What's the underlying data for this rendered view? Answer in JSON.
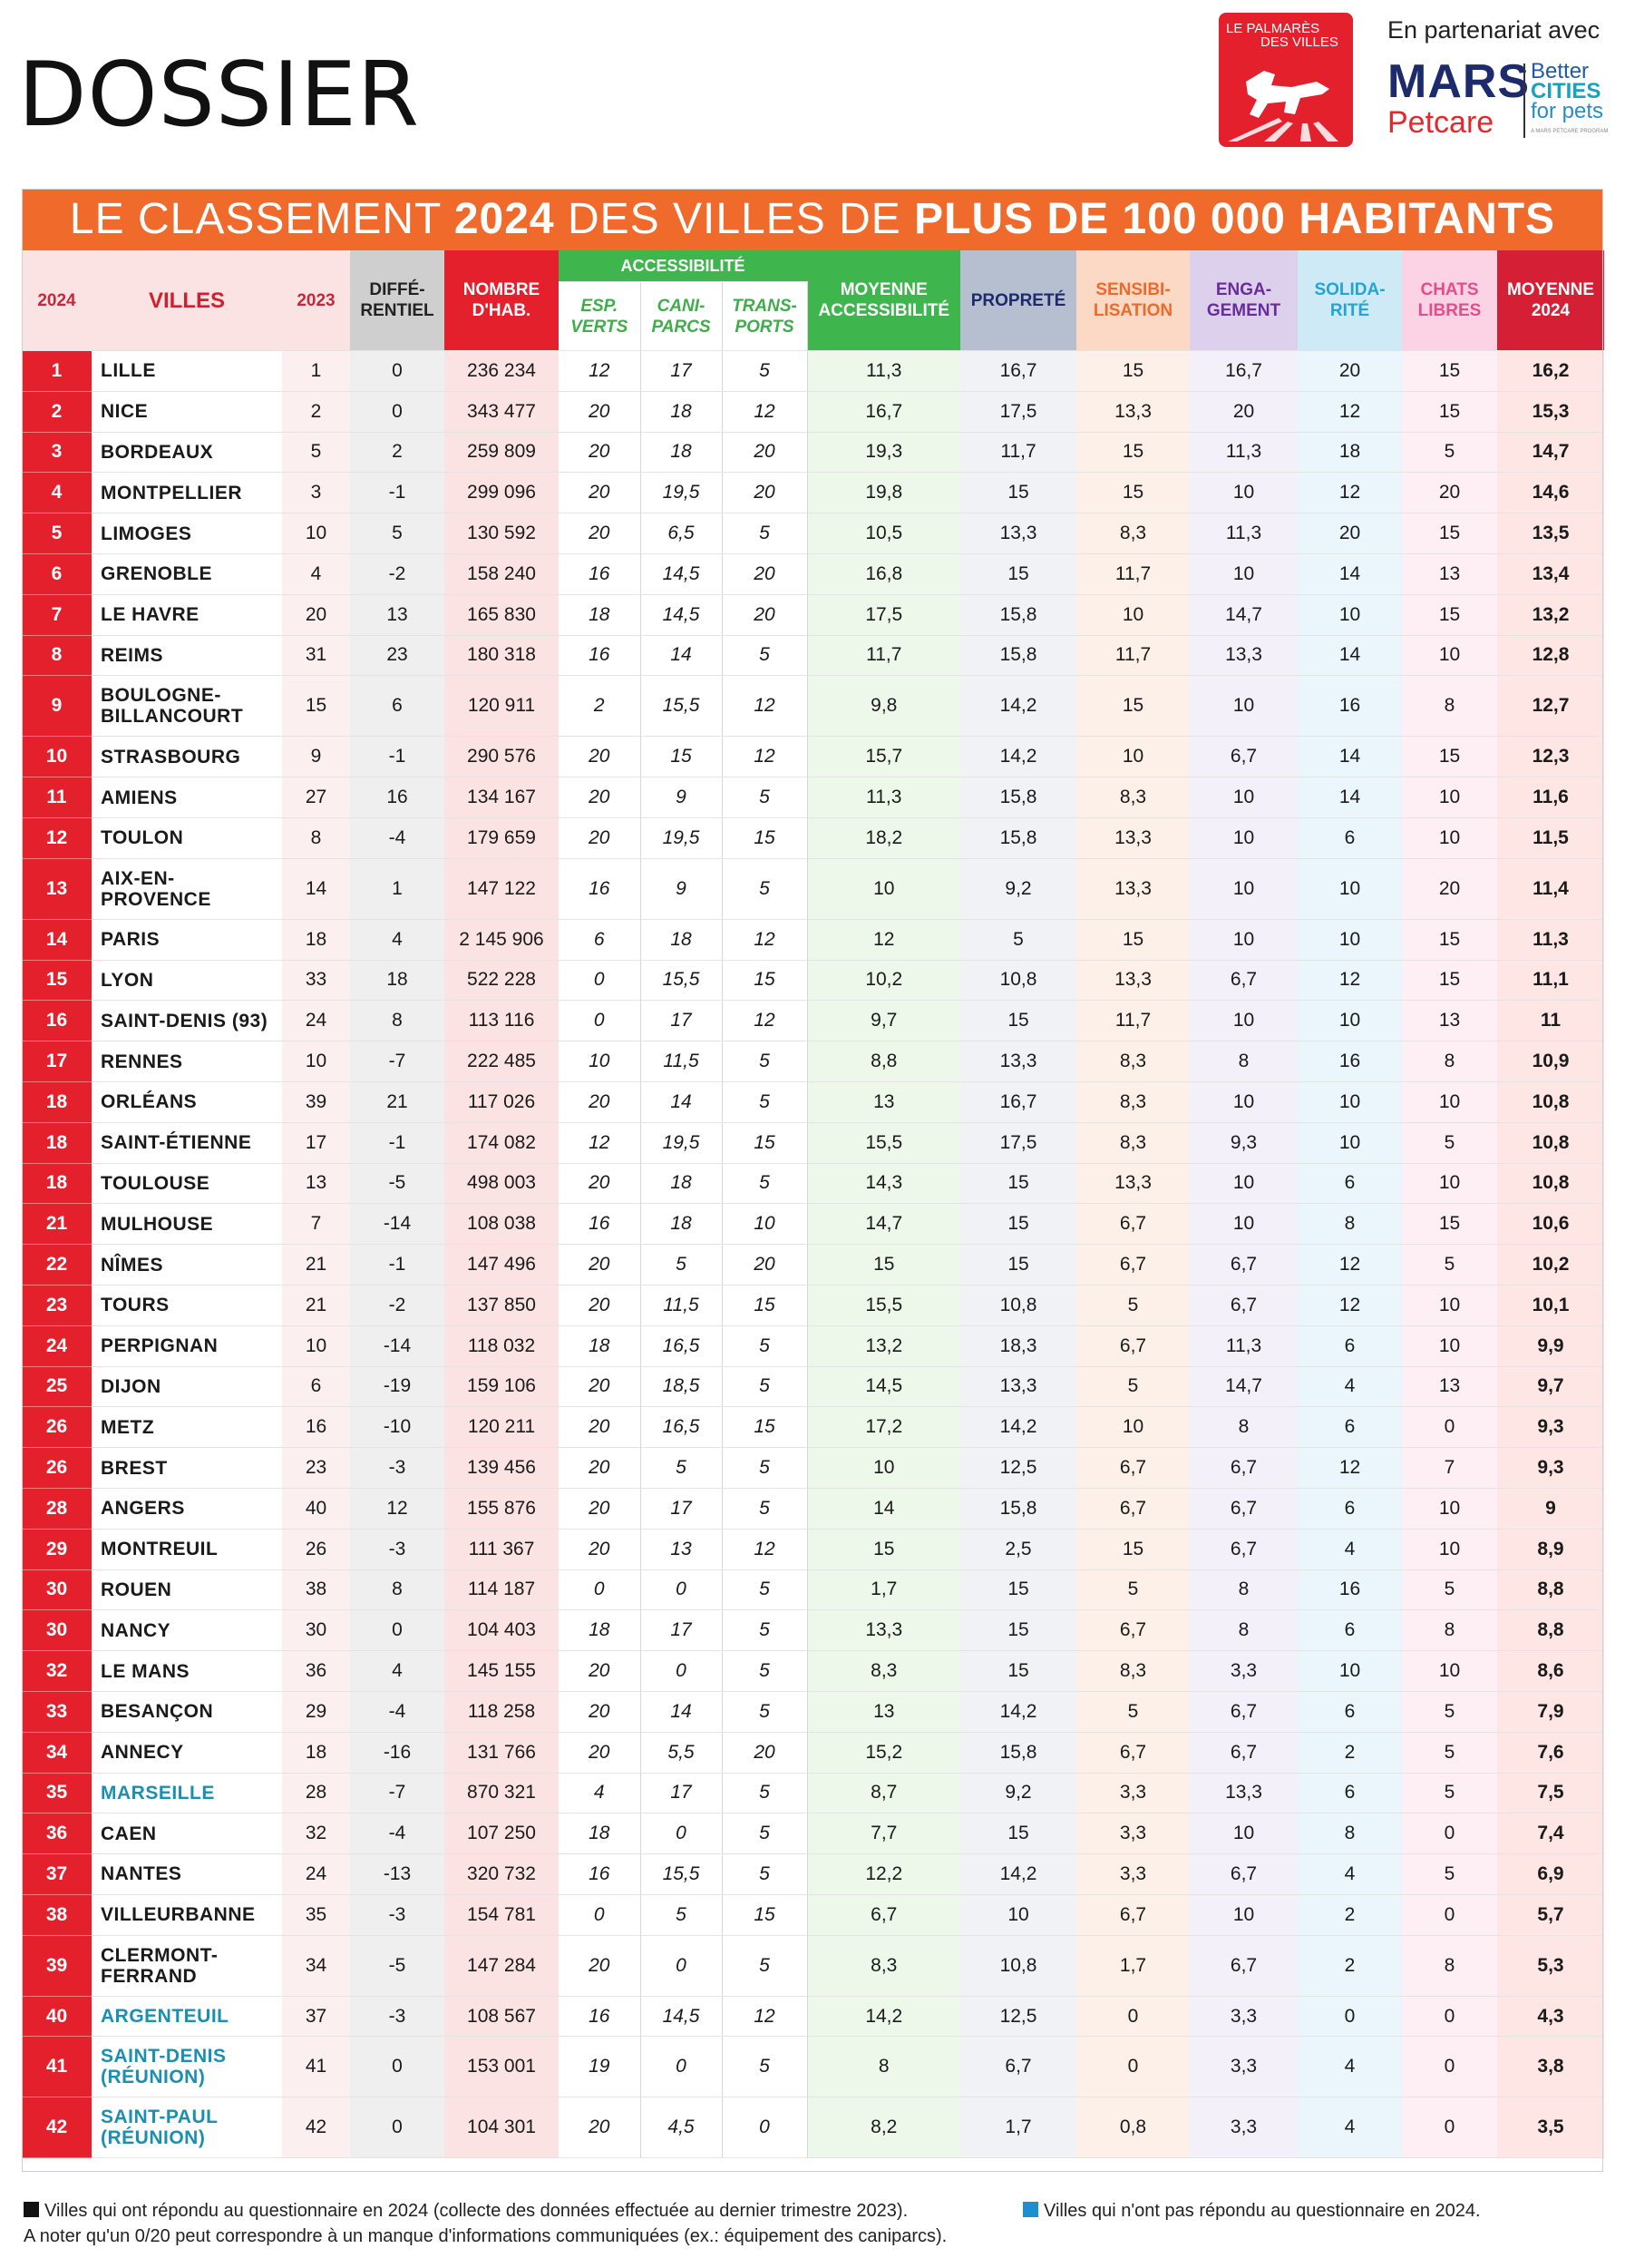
{
  "header": {
    "section_title": "DOSSIER",
    "logo_text_1": "LE PALMARÈS",
    "logo_text_2": "DES VILLES",
    "partner_text": "En partenariat avec",
    "partner_brand": "MARS",
    "partner_sub": "Petcare",
    "partner_program_1": "Better",
    "partner_program_2": "CITIES",
    "partner_program_3": "for pets",
    "partner_tagline": "A MARS PETCARE PROGRAM"
  },
  "banner": {
    "part1": "LE CLASSEMENT ",
    "year": "2024",
    "part2": " DES VILLES DE ",
    "part3": "PLUS DE 100 000 HABITANTS"
  },
  "columns": {
    "rank": "2024",
    "ville": "VILLES",
    "y2023": "2023",
    "diff": "DIFFÉ-\nRENTIEL",
    "hab": "NOMBRE\nD'HAB.",
    "accessibilite": "ACCESSIBILITÉ",
    "esp": "ESP.\nVERTS",
    "cani": "CANI-\nPARCS",
    "trans": "TRANS-\nPORTS",
    "moyacc": "MOYENNE\nACCESSIBILITÉ",
    "prop": "PROPRETÉ",
    "sens": "SENSIBI-\nLISATION",
    "eng": "ENGA-\nGEMENT",
    "sol": "SOLIDA-\nRITÉ",
    "chats": "CHATS\nLIBRES",
    "moy": "MOYENNE\n2024"
  },
  "rows": [
    {
      "rank": "1",
      "ville": "LILLE",
      "y2023": "1",
      "diff": "0",
      "hab": "236 234",
      "esp": "12",
      "cani": "17",
      "trans": "5",
      "moyacc": "11,3",
      "prop": "16,7",
      "sens": "15",
      "eng": "16,7",
      "sol": "20",
      "chats": "15",
      "moy": "16,2",
      "responded": true
    },
    {
      "rank": "2",
      "ville": "NICE",
      "y2023": "2",
      "diff": "0",
      "hab": "343 477",
      "esp": "20",
      "cani": "18",
      "trans": "12",
      "moyacc": "16,7",
      "prop": "17,5",
      "sens": "13,3",
      "eng": "20",
      "sol": "12",
      "chats": "15",
      "moy": "15,3",
      "responded": true
    },
    {
      "rank": "3",
      "ville": "BORDEAUX",
      "y2023": "5",
      "diff": "2",
      "hab": "259 809",
      "esp": "20",
      "cani": "18",
      "trans": "20",
      "moyacc": "19,3",
      "prop": "11,7",
      "sens": "15",
      "eng": "11,3",
      "sol": "18",
      "chats": "5",
      "moy": "14,7",
      "responded": true
    },
    {
      "rank": "4",
      "ville": "MONTPELLIER",
      "y2023": "3",
      "diff": "-1",
      "hab": "299 096",
      "esp": "20",
      "cani": "19,5",
      "trans": "20",
      "moyacc": "19,8",
      "prop": "15",
      "sens": "15",
      "eng": "10",
      "sol": "12",
      "chats": "20",
      "moy": "14,6",
      "responded": true
    },
    {
      "rank": "5",
      "ville": "LIMOGES",
      "y2023": "10",
      "diff": "5",
      "hab": "130 592",
      "esp": "20",
      "cani": "6,5",
      "trans": "5",
      "moyacc": "10,5",
      "prop": "13,3",
      "sens": "8,3",
      "eng": "11,3",
      "sol": "20",
      "chats": "15",
      "moy": "13,5",
      "responded": true
    },
    {
      "rank": "6",
      "ville": "GRENOBLE",
      "y2023": "4",
      "diff": "-2",
      "hab": "158 240",
      "esp": "16",
      "cani": "14,5",
      "trans": "20",
      "moyacc": "16,8",
      "prop": "15",
      "sens": "11,7",
      "eng": "10",
      "sol": "14",
      "chats": "13",
      "moy": "13,4",
      "responded": true
    },
    {
      "rank": "7",
      "ville": "LE HAVRE",
      "y2023": "20",
      "diff": "13",
      "hab": "165 830",
      "esp": "18",
      "cani": "14,5",
      "trans": "20",
      "moyacc": "17,5",
      "prop": "15,8",
      "sens": "10",
      "eng": "14,7",
      "sol": "10",
      "chats": "15",
      "moy": "13,2",
      "responded": true
    },
    {
      "rank": "8",
      "ville": "REIMS",
      "y2023": "31",
      "diff": "23",
      "hab": "180 318",
      "esp": "16",
      "cani": "14",
      "trans": "5",
      "moyacc": "11,7",
      "prop": "15,8",
      "sens": "11,7",
      "eng": "13,3",
      "sol": "14",
      "chats": "10",
      "moy": "12,8",
      "responded": true
    },
    {
      "rank": "9",
      "ville": "BOULOGNE-\nBILLANCOURT",
      "y2023": "15",
      "diff": "6",
      "hab": "120 911",
      "esp": "2",
      "cani": "15,5",
      "trans": "12",
      "moyacc": "9,8",
      "prop": "14,2",
      "sens": "15",
      "eng": "10",
      "sol": "16",
      "chats": "8",
      "moy": "12,7",
      "responded": true,
      "tall": true
    },
    {
      "rank": "10",
      "ville": "STRASBOURG",
      "y2023": "9",
      "diff": "-1",
      "hab": "290 576",
      "esp": "20",
      "cani": "15",
      "trans": "12",
      "moyacc": "15,7",
      "prop": "14,2",
      "sens": "10",
      "eng": "6,7",
      "sol": "14",
      "chats": "15",
      "moy": "12,3",
      "responded": true
    },
    {
      "rank": "11",
      "ville": "AMIENS",
      "y2023": "27",
      "diff": "16",
      "hab": "134 167",
      "esp": "20",
      "cani": "9",
      "trans": "5",
      "moyacc": "11,3",
      "prop": "15,8",
      "sens": "8,3",
      "eng": "10",
      "sol": "14",
      "chats": "10",
      "moy": "11,6",
      "responded": true
    },
    {
      "rank": "12",
      "ville": "TOULON",
      "y2023": "8",
      "diff": "-4",
      "hab": "179 659",
      "esp": "20",
      "cani": "19,5",
      "trans": "15",
      "moyacc": "18,2",
      "prop": "15,8",
      "sens": "13,3",
      "eng": "10",
      "sol": "6",
      "chats": "10",
      "moy": "11,5",
      "responded": true
    },
    {
      "rank": "13",
      "ville": "AIX-EN-\nPROVENCE",
      "y2023": "14",
      "diff": "1",
      "hab": "147 122",
      "esp": "16",
      "cani": "9",
      "trans": "5",
      "moyacc": "10",
      "prop": "9,2",
      "sens": "13,3",
      "eng": "10",
      "sol": "10",
      "chats": "20",
      "moy": "11,4",
      "responded": true,
      "tall": true
    },
    {
      "rank": "14",
      "ville": "PARIS",
      "y2023": "18",
      "diff": "4",
      "hab": "2 145 906",
      "esp": "6",
      "cani": "18",
      "trans": "12",
      "moyacc": "12",
      "prop": "5",
      "sens": "15",
      "eng": "10",
      "sol": "10",
      "chats": "15",
      "moy": "11,3",
      "responded": true
    },
    {
      "rank": "15",
      "ville": "LYON",
      "y2023": "33",
      "diff": "18",
      "hab": "522 228",
      "esp": "0",
      "cani": "15,5",
      "trans": "15",
      "moyacc": "10,2",
      "prop": "10,8",
      "sens": "13,3",
      "eng": "6,7",
      "sol": "12",
      "chats": "15",
      "moy": "11,1",
      "responded": true
    },
    {
      "rank": "16",
      "ville": "SAINT-DENIS (93)",
      "y2023": "24",
      "diff": "8",
      "hab": "113 116",
      "esp": "0",
      "cani": "17",
      "trans": "12",
      "moyacc": "9,7",
      "prop": "15",
      "sens": "11,7",
      "eng": "10",
      "sol": "10",
      "chats": "13",
      "moy": "11",
      "responded": true
    },
    {
      "rank": "17",
      "ville": "RENNES",
      "y2023": "10",
      "diff": "-7",
      "hab": "222 485",
      "esp": "10",
      "cani": "11,5",
      "trans": "5",
      "moyacc": "8,8",
      "prop": "13,3",
      "sens": "8,3",
      "eng": "8",
      "sol": "16",
      "chats": "8",
      "moy": "10,9",
      "responded": true
    },
    {
      "rank": "18",
      "ville": "ORLÉANS",
      "y2023": "39",
      "diff": "21",
      "hab": "117 026",
      "esp": "20",
      "cani": "14",
      "trans": "5",
      "moyacc": "13",
      "prop": "16,7",
      "sens": "8,3",
      "eng": "10",
      "sol": "10",
      "chats": "10",
      "moy": "10,8",
      "responded": true
    },
    {
      "rank": "18",
      "ville": "SAINT-ÉTIENNE",
      "y2023": "17",
      "diff": "-1",
      "hab": "174 082",
      "esp": "12",
      "cani": "19,5",
      "trans": "15",
      "moyacc": "15,5",
      "prop": "17,5",
      "sens": "8,3",
      "eng": "9,3",
      "sol": "10",
      "chats": "5",
      "moy": "10,8",
      "responded": true
    },
    {
      "rank": "18",
      "ville": "TOULOUSE",
      "y2023": "13",
      "diff": "-5",
      "hab": "498 003",
      "esp": "20",
      "cani": "18",
      "trans": "5",
      "moyacc": "14,3",
      "prop": "15",
      "sens": "13,3",
      "eng": "10",
      "sol": "6",
      "chats": "10",
      "moy": "10,8",
      "responded": true
    },
    {
      "rank": "21",
      "ville": "MULHOUSE",
      "y2023": "7",
      "diff": "-14",
      "hab": "108 038",
      "esp": "16",
      "cani": "18",
      "trans": "10",
      "moyacc": "14,7",
      "prop": "15",
      "sens": "6,7",
      "eng": "10",
      "sol": "8",
      "chats": "15",
      "moy": "10,6",
      "responded": true
    },
    {
      "rank": "22",
      "ville": "NÎMES",
      "y2023": "21",
      "diff": "-1",
      "hab": "147 496",
      "esp": "20",
      "cani": "5",
      "trans": "20",
      "moyacc": "15",
      "prop": "15",
      "sens": "6,7",
      "eng": "6,7",
      "sol": "12",
      "chats": "5",
      "moy": "10,2",
      "responded": true
    },
    {
      "rank": "23",
      "ville": "TOURS",
      "y2023": "21",
      "diff": "-2",
      "hab": "137 850",
      "esp": "20",
      "cani": "11,5",
      "trans": "15",
      "moyacc": "15,5",
      "prop": "10,8",
      "sens": "5",
      "eng": "6,7",
      "sol": "12",
      "chats": "10",
      "moy": "10,1",
      "responded": true
    },
    {
      "rank": "24",
      "ville": "PERPIGNAN",
      "y2023": "10",
      "diff": "-14",
      "hab": "118 032",
      "esp": "18",
      "cani": "16,5",
      "trans": "5",
      "moyacc": "13,2",
      "prop": "18,3",
      "sens": "6,7",
      "eng": "11,3",
      "sol": "6",
      "chats": "10",
      "moy": "9,9",
      "responded": true
    },
    {
      "rank": "25",
      "ville": "DIJON",
      "y2023": "6",
      "diff": "-19",
      "hab": "159 106",
      "esp": "20",
      "cani": "18,5",
      "trans": "5",
      "moyacc": "14,5",
      "prop": "13,3",
      "sens": "5",
      "eng": "14,7",
      "sol": "4",
      "chats": "13",
      "moy": "9,7",
      "responded": true
    },
    {
      "rank": "26",
      "ville": "METZ",
      "y2023": "16",
      "diff": "-10",
      "hab": "120 211",
      "esp": "20",
      "cani": "16,5",
      "trans": "15",
      "moyacc": "17,2",
      "prop": "14,2",
      "sens": "10",
      "eng": "8",
      "sol": "6",
      "chats": "0",
      "moy": "9,3",
      "responded": true
    },
    {
      "rank": "26",
      "ville": "BREST",
      "y2023": "23",
      "diff": "-3",
      "hab": "139 456",
      "esp": "20",
      "cani": "5",
      "trans": "5",
      "moyacc": "10",
      "prop": "12,5",
      "sens": "6,7",
      "eng": "6,7",
      "sol": "12",
      "chats": "7",
      "moy": "9,3",
      "responded": true
    },
    {
      "rank": "28",
      "ville": "ANGERS",
      "y2023": "40",
      "diff": "12",
      "hab": "155 876",
      "esp": "20",
      "cani": "17",
      "trans": "5",
      "moyacc": "14",
      "prop": "15,8",
      "sens": "6,7",
      "eng": "6,7",
      "sol": "6",
      "chats": "10",
      "moy": "9",
      "responded": true
    },
    {
      "rank": "29",
      "ville": "MONTREUIL",
      "y2023": "26",
      "diff": "-3",
      "hab": "111 367",
      "esp": "20",
      "cani": "13",
      "trans": "12",
      "moyacc": "15",
      "prop": "2,5",
      "sens": "15",
      "eng": "6,7",
      "sol": "4",
      "chats": "10",
      "moy": "8,9",
      "responded": true
    },
    {
      "rank": "30",
      "ville": "ROUEN",
      "y2023": "38",
      "diff": "8",
      "hab": "114 187",
      "esp": "0",
      "cani": "0",
      "trans": "5",
      "moyacc": "1,7",
      "prop": "15",
      "sens": "5",
      "eng": "8",
      "sol": "16",
      "chats": "5",
      "moy": "8,8",
      "responded": true
    },
    {
      "rank": "30",
      "ville": "NANCY",
      "y2023": "30",
      "diff": "0",
      "hab": "104 403",
      "esp": "18",
      "cani": "17",
      "trans": "5",
      "moyacc": "13,3",
      "prop": "15",
      "sens": "6,7",
      "eng": "8",
      "sol": "6",
      "chats": "8",
      "moy": "8,8",
      "responded": true
    },
    {
      "rank": "32",
      "ville": "LE MANS",
      "y2023": "36",
      "diff": "4",
      "hab": "145 155",
      "esp": "20",
      "cani": "0",
      "trans": "5",
      "moyacc": "8,3",
      "prop": "15",
      "sens": "8,3",
      "eng": "3,3",
      "sol": "10",
      "chats": "10",
      "moy": "8,6",
      "responded": true
    },
    {
      "rank": "33",
      "ville": "BESANÇON",
      "y2023": "29",
      "diff": "-4",
      "hab": "118 258",
      "esp": "20",
      "cani": "14",
      "trans": "5",
      "moyacc": "13",
      "prop": "14,2",
      "sens": "5",
      "eng": "6,7",
      "sol": "6",
      "chats": "5",
      "moy": "7,9",
      "responded": true
    },
    {
      "rank": "34",
      "ville": "ANNECY",
      "y2023": "18",
      "diff": "-16",
      "hab": "131 766",
      "esp": "20",
      "cani": "5,5",
      "trans": "20",
      "moyacc": "15,2",
      "prop": "15,8",
      "sens": "6,7",
      "eng": "6,7",
      "sol": "2",
      "chats": "5",
      "moy": "7,6",
      "responded": true
    },
    {
      "rank": "35",
      "ville": "MARSEILLE",
      "y2023": "28",
      "diff": "-7",
      "hab": "870 321",
      "esp": "4",
      "cani": "17",
      "trans": "5",
      "moyacc": "8,7",
      "prop": "9,2",
      "sens": "3,3",
      "eng": "13,3",
      "sol": "6",
      "chats": "5",
      "moy": "7,5",
      "responded": false
    },
    {
      "rank": "36",
      "ville": "CAEN",
      "y2023": "32",
      "diff": "-4",
      "hab": "107 250",
      "esp": "18",
      "cani": "0",
      "trans": "5",
      "moyacc": "7,7",
      "prop": "15",
      "sens": "3,3",
      "eng": "10",
      "sol": "8",
      "chats": "0",
      "moy": "7,4",
      "responded": true
    },
    {
      "rank": "37",
      "ville": "NANTES",
      "y2023": "24",
      "diff": "-13",
      "hab": "320 732",
      "esp": "16",
      "cani": "15,5",
      "trans": "5",
      "moyacc": "12,2",
      "prop": "14,2",
      "sens": "3,3",
      "eng": "6,7",
      "sol": "4",
      "chats": "5",
      "moy": "6,9",
      "responded": true
    },
    {
      "rank": "38",
      "ville": "VILLEURBANNE",
      "y2023": "35",
      "diff": "-3",
      "hab": "154 781",
      "esp": "0",
      "cani": "5",
      "trans": "15",
      "moyacc": "6,7",
      "prop": "10",
      "sens": "6,7",
      "eng": "10",
      "sol": "2",
      "chats": "0",
      "moy": "5,7",
      "responded": true
    },
    {
      "rank": "39",
      "ville": "CLERMONT-\nFERRAND",
      "y2023": "34",
      "diff": "-5",
      "hab": "147 284",
      "esp": "20",
      "cani": "0",
      "trans": "5",
      "moyacc": "8,3",
      "prop": "10,8",
      "sens": "1,7",
      "eng": "6,7",
      "sol": "2",
      "chats": "8",
      "moy": "5,3",
      "responded": true,
      "tall": true
    },
    {
      "rank": "40",
      "ville": "ARGENTEUIL",
      "y2023": "37",
      "diff": "-3",
      "hab": "108 567",
      "esp": "16",
      "cani": "14,5",
      "trans": "12",
      "moyacc": "14,2",
      "prop": "12,5",
      "sens": "0",
      "eng": "3,3",
      "sol": "0",
      "chats": "0",
      "moy": "4,3",
      "responded": false
    },
    {
      "rank": "41",
      "ville": "SAINT-DENIS\n(RÉUNION)",
      "y2023": "41",
      "diff": "0",
      "hab": "153 001",
      "esp": "19",
      "cani": "0",
      "trans": "5",
      "moyacc": "8",
      "prop": "6,7",
      "sens": "0",
      "eng": "3,3",
      "sol": "4",
      "chats": "0",
      "moy": "3,8",
      "responded": false,
      "tall": true
    },
    {
      "rank": "42",
      "ville": "SAINT-PAUL\n(RÉUNION)",
      "y2023": "42",
      "diff": "0",
      "hab": "104 301",
      "esp": "20",
      "cani": "4,5",
      "trans": "0",
      "moyacc": "8,2",
      "prop": "1,7",
      "sens": "0,8",
      "eng": "3,3",
      "sol": "4",
      "chats": "0",
      "moy": "3,5",
      "responded": false,
      "tall": true
    }
  ],
  "legend": {
    "responded": "Villes qui ont répondu au questionnaire en 2024 (collecte des données effectuée au dernier trimestre 2023).",
    "not_responded": "Villes qui n'ont pas répondu au questionnaire en 2024.",
    "note": "A noter qu'un 0/20 peut correspondre à un manque d'informations communiquées (ex.: équipement des caniparcs)."
  },
  "colors": {
    "banner": "#ef6a2b",
    "rank_red": "#e3202c",
    "not_responded_blue": "#1b8fb0",
    "accessibility_green": "#3fb54d"
  }
}
